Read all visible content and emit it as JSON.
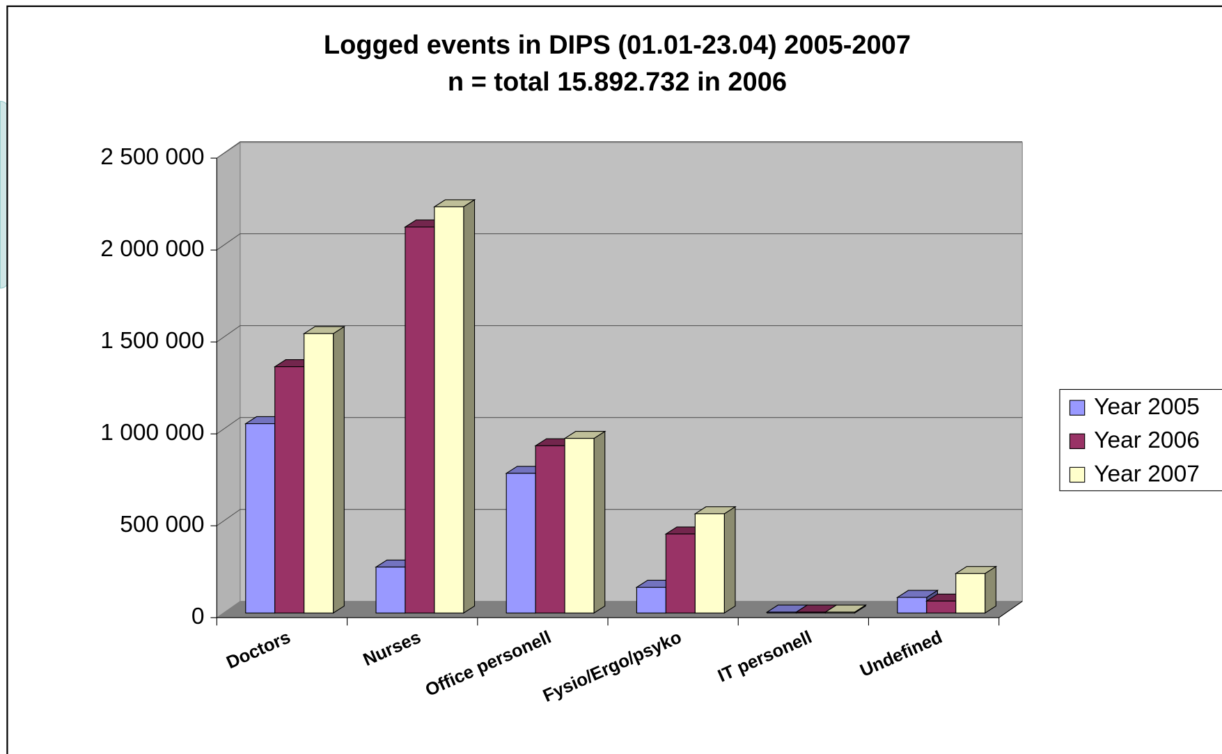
{
  "chart_data": {
    "type": "bar3d",
    "title": "Logged events in DIPS (01.01-23.04) 2005-2007",
    "subtitle": "n = total 15.892.732 in 2006",
    "categories": [
      "Doctors",
      "Nurses",
      "Office personell",
      "Fysio/Ergo/psyko",
      "IT personell",
      "Undefined"
    ],
    "series": [
      {
        "name": "Year 2005",
        "color": "#9999ff",
        "values": [
          1030000,
          250000,
          760000,
          140000,
          5000,
          85000
        ]
      },
      {
        "name": "Year 2006",
        "color": "#993366",
        "values": [
          1340000,
          2100000,
          910000,
          430000,
          5000,
          65000
        ]
      },
      {
        "name": "Year 2007",
        "color": "#ffffcc",
        "values": [
          1520000,
          2210000,
          950000,
          540000,
          5000,
          215000
        ]
      }
    ],
    "ylim": [
      0,
      2500000
    ],
    "yticks": [
      0,
      {
        "value": 500000,
        "label": "500 000"
      },
      {
        "value": 1000000,
        "label": "1 000 000"
      },
      {
        "value": 1500000,
        "label": "1 500 000"
      },
      {
        "value": 2000000,
        "label": "2 000 000"
      },
      {
        "value": 2500000,
        "label": "2 500 000"
      }
    ],
    "grid": true,
    "legend": "right"
  }
}
